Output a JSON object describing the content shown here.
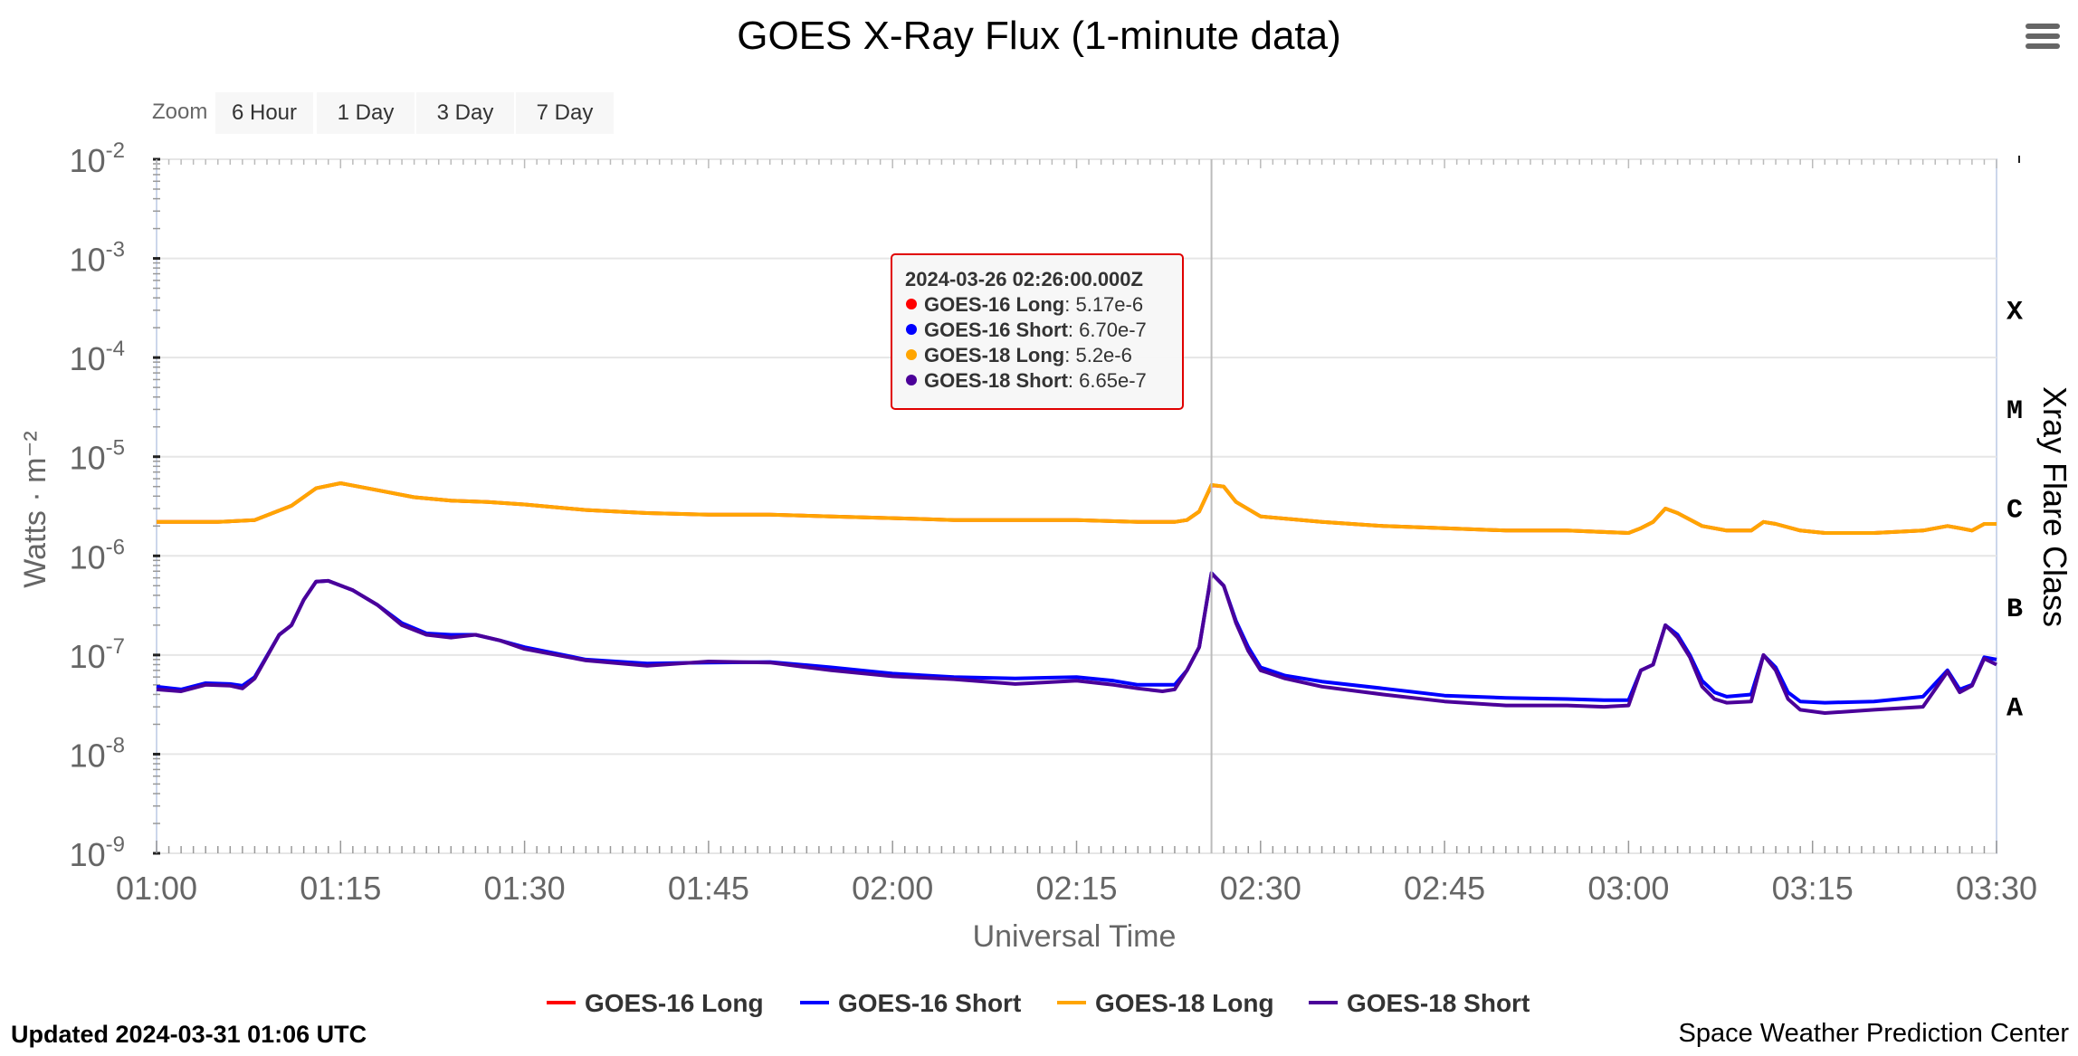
{
  "title": "GOES X-Ray Flux (1-minute data)",
  "zoom": {
    "label": "Zoom",
    "buttons": [
      "6 Hour",
      "1 Day",
      "3 Day",
      "7 Day"
    ]
  },
  "footer": {
    "updated": "Updated 2024-03-31 01:06 UTC",
    "credit": "Space Weather Prediction Center"
  },
  "tooltip": {
    "time": "2024-03-26 02:26:00.000Z",
    "rows": [
      {
        "name": "GOES-16 Long",
        "value": "5.17e-6"
      },
      {
        "name": "GOES-16 Short",
        "value": "6.70e-7"
      },
      {
        "name": "GOES-18 Long",
        "value": "5.2e-6"
      },
      {
        "name": "GOES-18 Short",
        "value": "6.65e-7"
      }
    ]
  },
  "chart_data": {
    "type": "line",
    "title": "GOES X-Ray Flux (1-minute data)",
    "xlabel": "Universal Time",
    "ylabel": "Watts · m⁻²",
    "y2label": "Xray Flare Class",
    "yscale": "log",
    "ylim": [
      1e-09,
      0.01
    ],
    "xlim": [
      "01:00",
      "03:30"
    ],
    "x_ticks": [
      "01:00",
      "01:15",
      "01:30",
      "01:45",
      "02:00",
      "02:15",
      "02:30",
      "02:45",
      "03:00",
      "03:15",
      "03:30"
    ],
    "y_ticks": [
      {
        "base": "10",
        "exp": "-9"
      },
      {
        "base": "10",
        "exp": "-8"
      },
      {
        "base": "10",
        "exp": "-7"
      },
      {
        "base": "10",
        "exp": "-6"
      },
      {
        "base": "10",
        "exp": "-5"
      },
      {
        "base": "10",
        "exp": "-4"
      },
      {
        "base": "10",
        "exp": "-3"
      },
      {
        "base": "10",
        "exp": "-2"
      }
    ],
    "flare_classes": [
      {
        "label": "A",
        "level": 1e-08
      },
      {
        "label": "B",
        "level": 1e-07
      },
      {
        "label": "C",
        "level": 1e-06
      },
      {
        "label": "M",
        "level": 1e-05
      },
      {
        "label": "X",
        "level": 0.0001
      }
    ],
    "grid": true,
    "legend_position": "bottom-center",
    "crosshair_time": "02:26",
    "colors": {
      "GOES-16 Long": "#ff0000",
      "GOES-16 Short": "#0000ff",
      "GOES-18 Long": "#ffa500",
      "GOES-18 Short": "#4b0099",
      "grid": "#e6e6e6",
      "tooltip_border": "#e00000"
    },
    "series": [
      {
        "name": "GOES-16 Long",
        "points": [
          [
            "01:00",
            2.2e-06
          ],
          [
            "01:05",
            2.2e-06
          ],
          [
            "01:08",
            2.3e-06
          ],
          [
            "01:11",
            3.2e-06
          ],
          [
            "01:13",
            4.8e-06
          ],
          [
            "01:15",
            5.4e-06
          ],
          [
            "01:18",
            4.6e-06
          ],
          [
            "01:21",
            3.9e-06
          ],
          [
            "01:24",
            3.6e-06
          ],
          [
            "01:27",
            3.5e-06
          ],
          [
            "01:30",
            3.3e-06
          ],
          [
            "01:35",
            2.9e-06
          ],
          [
            "01:40",
            2.7e-06
          ],
          [
            "01:45",
            2.6e-06
          ],
          [
            "01:50",
            2.6e-06
          ],
          [
            "01:55",
            2.5e-06
          ],
          [
            "02:00",
            2.4e-06
          ],
          [
            "02:05",
            2.3e-06
          ],
          [
            "02:10",
            2.3e-06
          ],
          [
            "02:15",
            2.3e-06
          ],
          [
            "02:20",
            2.2e-06
          ],
          [
            "02:23",
            2.2e-06
          ],
          [
            "02:24",
            2.3e-06
          ],
          [
            "02:25",
            2.8e-06
          ],
          [
            "02:26",
            5.17e-06
          ],
          [
            "02:27",
            5e-06
          ],
          [
            "02:28",
            3.5e-06
          ],
          [
            "02:30",
            2.5e-06
          ],
          [
            "02:35",
            2.2e-06
          ],
          [
            "02:40",
            2e-06
          ],
          [
            "02:45",
            1.9e-06
          ],
          [
            "02:50",
            1.8e-06
          ],
          [
            "02:55",
            1.8e-06
          ],
          [
            "03:00",
            1.7e-06
          ],
          [
            "03:01",
            1.9e-06
          ],
          [
            "03:02",
            2.2e-06
          ],
          [
            "03:03",
            3e-06
          ],
          [
            "03:04",
            2.7e-06
          ],
          [
            "03:06",
            2e-06
          ],
          [
            "03:08",
            1.8e-06
          ],
          [
            "03:10",
            1.8e-06
          ],
          [
            "03:11",
            2.2e-06
          ],
          [
            "03:12",
            2.1e-06
          ],
          [
            "03:14",
            1.8e-06
          ],
          [
            "03:16",
            1.7e-06
          ],
          [
            "03:20",
            1.7e-06
          ],
          [
            "03:24",
            1.8e-06
          ],
          [
            "03:26",
            2e-06
          ],
          [
            "03:27",
            1.9e-06
          ],
          [
            "03:28",
            1.8e-06
          ],
          [
            "03:29",
            2.1e-06
          ],
          [
            "03:30",
            2.1e-06
          ]
        ]
      },
      {
        "name": "GOES-16 Short",
        "points": [
          [
            "01:00",
            4.8e-08
          ],
          [
            "01:02",
            4.5e-08
          ],
          [
            "01:04",
            5.2e-08
          ],
          [
            "01:06",
            5.1e-08
          ],
          [
            "01:07",
            4.9e-08
          ],
          [
            "01:08",
            6e-08
          ],
          [
            "01:10",
            1.6e-07
          ],
          [
            "01:11",
            2e-07
          ],
          [
            "01:12",
            3.6e-07
          ],
          [
            "01:13",
            5.5e-07
          ],
          [
            "01:14",
            5.6e-07
          ],
          [
            "01:16",
            4.5e-07
          ],
          [
            "01:18",
            3.2e-07
          ],
          [
            "01:20",
            2.1e-07
          ],
          [
            "01:22",
            1.65e-07
          ],
          [
            "01:24",
            1.6e-07
          ],
          [
            "01:26",
            1.6e-07
          ],
          [
            "01:28",
            1.4e-07
          ],
          [
            "01:30",
            1.2e-07
          ],
          [
            "01:35",
            9e-08
          ],
          [
            "01:40",
            8.2e-08
          ],
          [
            "01:45",
            8.4e-08
          ],
          [
            "01:50",
            8.5e-08
          ],
          [
            "01:55",
            7.5e-08
          ],
          [
            "02:00",
            6.5e-08
          ],
          [
            "02:05",
            6e-08
          ],
          [
            "02:10",
            5.8e-08
          ],
          [
            "02:15",
            6e-08
          ],
          [
            "02:18",
            5.5e-08
          ],
          [
            "02:20",
            5e-08
          ],
          [
            "02:22",
            5e-08
          ],
          [
            "02:23",
            5e-08
          ],
          [
            "02:24",
            7e-08
          ],
          [
            "02:25",
            1.2e-07
          ],
          [
            "02:26",
            6.7e-07
          ],
          [
            "02:27",
            5e-07
          ],
          [
            "02:28",
            2.2e-07
          ],
          [
            "02:29",
            1.2e-07
          ],
          [
            "02:30",
            7.5e-08
          ],
          [
            "02:32",
            6.2e-08
          ],
          [
            "02:35",
            5.4e-08
          ],
          [
            "02:40",
            4.6e-08
          ],
          [
            "02:45",
            3.9e-08
          ],
          [
            "02:50",
            3.7e-08
          ],
          [
            "02:55",
            3.6e-08
          ],
          [
            "02:58",
            3.5e-08
          ],
          [
            "03:00",
            3.5e-08
          ],
          [
            "03:01",
            7e-08
          ],
          [
            "03:02",
            8e-08
          ],
          [
            "03:03",
            2e-07
          ],
          [
            "03:04",
            1.6e-07
          ],
          [
            "03:05",
            1e-07
          ],
          [
            "03:06",
            5.5e-08
          ],
          [
            "03:07",
            4.2e-08
          ],
          [
            "03:08",
            3.8e-08
          ],
          [
            "03:10",
            4e-08
          ],
          [
            "03:11",
            1e-07
          ],
          [
            "03:12",
            7.5e-08
          ],
          [
            "03:13",
            4.2e-08
          ],
          [
            "03:14",
            3.4e-08
          ],
          [
            "03:16",
            3.3e-08
          ],
          [
            "03:20",
            3.4e-08
          ],
          [
            "03:24",
            3.8e-08
          ],
          [
            "03:26",
            7e-08
          ],
          [
            "03:27",
            4.5e-08
          ],
          [
            "03:28",
            5e-08
          ],
          [
            "03:29",
            9.5e-08
          ],
          [
            "03:30",
            9e-08
          ]
        ]
      },
      {
        "name": "GOES-18 Long",
        "points": [
          [
            "01:00",
            2.2e-06
          ],
          [
            "01:05",
            2.2e-06
          ],
          [
            "01:08",
            2.3e-06
          ],
          [
            "01:11",
            3.2e-06
          ],
          [
            "01:13",
            4.8e-06
          ],
          [
            "01:15",
            5.4e-06
          ],
          [
            "01:18",
            4.6e-06
          ],
          [
            "01:21",
            3.9e-06
          ],
          [
            "01:24",
            3.6e-06
          ],
          [
            "01:27",
            3.5e-06
          ],
          [
            "01:30",
            3.3e-06
          ],
          [
            "01:35",
            2.9e-06
          ],
          [
            "01:40",
            2.7e-06
          ],
          [
            "01:45",
            2.6e-06
          ],
          [
            "01:50",
            2.6e-06
          ],
          [
            "01:55",
            2.5e-06
          ],
          [
            "02:00",
            2.4e-06
          ],
          [
            "02:05",
            2.3e-06
          ],
          [
            "02:10",
            2.3e-06
          ],
          [
            "02:15",
            2.3e-06
          ],
          [
            "02:20",
            2.2e-06
          ],
          [
            "02:23",
            2.2e-06
          ],
          [
            "02:24",
            2.3e-06
          ],
          [
            "02:25",
            2.8e-06
          ],
          [
            "02:26",
            5.2e-06
          ],
          [
            "02:27",
            5e-06
          ],
          [
            "02:28",
            3.5e-06
          ],
          [
            "02:30",
            2.5e-06
          ],
          [
            "02:35",
            2.2e-06
          ],
          [
            "02:40",
            2e-06
          ],
          [
            "02:45",
            1.9e-06
          ],
          [
            "02:50",
            1.8e-06
          ],
          [
            "02:55",
            1.8e-06
          ],
          [
            "03:00",
            1.7e-06
          ],
          [
            "03:01",
            1.9e-06
          ],
          [
            "03:02",
            2.2e-06
          ],
          [
            "03:03",
            3e-06
          ],
          [
            "03:04",
            2.7e-06
          ],
          [
            "03:06",
            2e-06
          ],
          [
            "03:08",
            1.8e-06
          ],
          [
            "03:10",
            1.8e-06
          ],
          [
            "03:11",
            2.2e-06
          ],
          [
            "03:12",
            2.1e-06
          ],
          [
            "03:14",
            1.8e-06
          ],
          [
            "03:16",
            1.7e-06
          ],
          [
            "03:20",
            1.7e-06
          ],
          [
            "03:24",
            1.8e-06
          ],
          [
            "03:26",
            2e-06
          ],
          [
            "03:27",
            1.9e-06
          ],
          [
            "03:28",
            1.8e-06
          ],
          [
            "03:29",
            2.1e-06
          ],
          [
            "03:30",
            2.1e-06
          ]
        ]
      },
      {
        "name": "GOES-18 Short",
        "points": [
          [
            "01:00",
            4.5e-08
          ],
          [
            "01:02",
            4.3e-08
          ],
          [
            "01:04",
            5e-08
          ],
          [
            "01:06",
            4.9e-08
          ],
          [
            "01:07",
            4.6e-08
          ],
          [
            "01:08",
            5.8e-08
          ],
          [
            "01:10",
            1.6e-07
          ],
          [
            "01:11",
            2e-07
          ],
          [
            "01:12",
            3.6e-07
          ],
          [
            "01:13",
            5.5e-07
          ],
          [
            "01:14",
            5.6e-07
          ],
          [
            "01:16",
            4.5e-07
          ],
          [
            "01:18",
            3.2e-07
          ],
          [
            "01:20",
            2e-07
          ],
          [
            "01:22",
            1.6e-07
          ],
          [
            "01:24",
            1.5e-07
          ],
          [
            "01:26",
            1.6e-07
          ],
          [
            "01:28",
            1.4e-07
          ],
          [
            "01:30",
            1.15e-07
          ],
          [
            "01:35",
            8.8e-08
          ],
          [
            "01:40",
            7.8e-08
          ],
          [
            "01:45",
            8.6e-08
          ],
          [
            "01:50",
            8.4e-08
          ],
          [
            "01:55",
            7e-08
          ],
          [
            "02:00",
            6.1e-08
          ],
          [
            "02:05",
            5.7e-08
          ],
          [
            "02:10",
            5.1e-08
          ],
          [
            "02:15",
            5.5e-08
          ],
          [
            "02:18",
            5e-08
          ],
          [
            "02:20",
            4.6e-08
          ],
          [
            "02:22",
            4.3e-08
          ],
          [
            "02:23",
            4.5e-08
          ],
          [
            "02:24",
            7e-08
          ],
          [
            "02:25",
            1.2e-07
          ],
          [
            "02:26",
            6.65e-07
          ],
          [
            "02:27",
            5e-07
          ],
          [
            "02:28",
            2.1e-07
          ],
          [
            "02:29",
            1.1e-07
          ],
          [
            "02:30",
            7e-08
          ],
          [
            "02:32",
            5.8e-08
          ],
          [
            "02:35",
            4.8e-08
          ],
          [
            "02:40",
            4e-08
          ],
          [
            "02:45",
            3.4e-08
          ],
          [
            "02:50",
            3.1e-08
          ],
          [
            "02:55",
            3.1e-08
          ],
          [
            "02:58",
            3e-08
          ],
          [
            "03:00",
            3.1e-08
          ],
          [
            "03:01",
            7e-08
          ],
          [
            "03:02",
            8e-08
          ],
          [
            "03:03",
            2e-07
          ],
          [
            "03:04",
            1.5e-07
          ],
          [
            "03:05",
            9.5e-08
          ],
          [
            "03:06",
            4.8e-08
          ],
          [
            "03:07",
            3.6e-08
          ],
          [
            "03:08",
            3.3e-08
          ],
          [
            "03:10",
            3.4e-08
          ],
          [
            "03:11",
            1e-07
          ],
          [
            "03:12",
            7e-08
          ],
          [
            "03:13",
            3.6e-08
          ],
          [
            "03:14",
            2.8e-08
          ],
          [
            "03:16",
            2.6e-08
          ],
          [
            "03:20",
            2.8e-08
          ],
          [
            "03:24",
            3e-08
          ],
          [
            "03:26",
            6.8e-08
          ],
          [
            "03:27",
            4.2e-08
          ],
          [
            "03:28",
            4.9e-08
          ],
          [
            "03:29",
            9.2e-08
          ],
          [
            "03:30",
            8e-08
          ]
        ]
      }
    ]
  }
}
